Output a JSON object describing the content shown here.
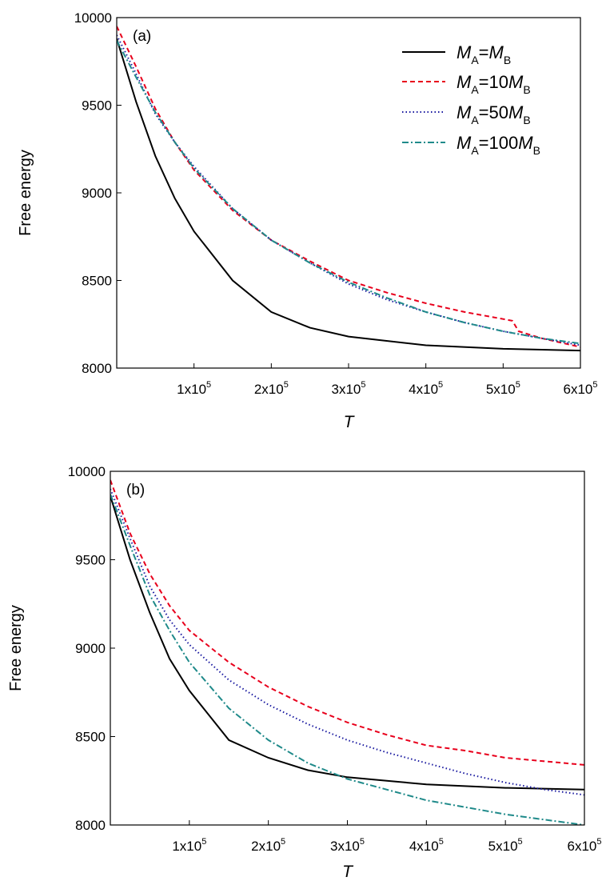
{
  "chart_data": [
    {
      "type": "line",
      "panel_label": "(a)",
      "xlabel": "T",
      "ylabel": "Free energy",
      "xlim": [
        0,
        600000
      ],
      "ylim": [
        8000,
        10000
      ],
      "xticks": [
        {
          "value": 100000,
          "mantissa": "1x10",
          "exp": "5"
        },
        {
          "value": 200000,
          "mantissa": "2x10",
          "exp": "5"
        },
        {
          "value": 300000,
          "mantissa": "3x10",
          "exp": "5"
        },
        {
          "value": 400000,
          "mantissa": "4x10",
          "exp": "5"
        },
        {
          "value": 500000,
          "mantissa": "5x10",
          "exp": "5"
        },
        {
          "value": 600000,
          "mantissa": "6x10",
          "exp": "5"
        }
      ],
      "yticks": [
        "8000",
        "8500",
        "9000",
        "9500",
        "10000"
      ],
      "legend_position": "top-right",
      "series": [
        {
          "name": "M_A=M_B",
          "legend": [
            [
              "M",
              "i"
            ],
            [
              "A",
              "sub"
            ],
            [
              "=",
              ""
            ],
            [
              "M",
              "i"
            ],
            [
              "B",
              "sub"
            ]
          ],
          "color": "#000000",
          "dash": "none",
          "x": [
            0,
            25000,
            50000,
            75000,
            100000,
            150000,
            200000,
            250000,
            300000,
            400000,
            500000,
            600000
          ],
          "y": [
            9880,
            9520,
            9210,
            8970,
            8780,
            8500,
            8320,
            8230,
            8180,
            8130,
            8110,
            8100
          ]
        },
        {
          "name": "M_A=10M_B",
          "legend": [
            [
              "M",
              "i"
            ],
            [
              "A",
              "sub"
            ],
            [
              "=10",
              ""
            ],
            [
              "M",
              "i"
            ],
            [
              "B",
              "sub"
            ]
          ],
          "color": "#e8001c",
          "dash": "6,4",
          "x": [
            0,
            25000,
            50000,
            75000,
            100000,
            150000,
            200000,
            250000,
            300000,
            350000,
            400000,
            450000,
            500000,
            512000,
            520000,
            550000,
            600000
          ],
          "y": [
            9950,
            9720,
            9480,
            9290,
            9130,
            8900,
            8730,
            8610,
            8500,
            8430,
            8370,
            8320,
            8280,
            8270,
            8210,
            8170,
            8120
          ]
        },
        {
          "name": "M_A=50M_B",
          "legend": [
            [
              "M",
              "i"
            ],
            [
              "A",
              "sub"
            ],
            [
              "=50",
              ""
            ],
            [
              "M",
              "i"
            ],
            [
              "B",
              "sub"
            ]
          ],
          "color": "#1a1aa0",
          "dash": "1.5,3",
          "x": [
            0,
            25000,
            50000,
            75000,
            100000,
            150000,
            200000,
            250000,
            300000,
            350000,
            400000,
            450000,
            500000,
            550000,
            600000
          ],
          "y": [
            9900,
            9680,
            9450,
            9290,
            9150,
            8910,
            8730,
            8600,
            8480,
            8390,
            8320,
            8260,
            8210,
            8170,
            8130
          ]
        },
        {
          "name": "M_A=100M_B",
          "legend": [
            [
              "M",
              "i"
            ],
            [
              "A",
              "sub"
            ],
            [
              "=100",
              ""
            ],
            [
              "M",
              "i"
            ],
            [
              "B",
              "sub"
            ]
          ],
          "color": "#1f8a8a",
          "dash": "8,3,2,3",
          "x": [
            0,
            25000,
            50000,
            75000,
            100000,
            150000,
            200000,
            250000,
            300000,
            350000,
            400000,
            450000,
            500000,
            550000,
            600000
          ],
          "y": [
            9870,
            9660,
            9460,
            9290,
            9140,
            8910,
            8730,
            8600,
            8490,
            8400,
            8320,
            8260,
            8210,
            8170,
            8140
          ]
        }
      ]
    },
    {
      "type": "line",
      "panel_label": "(b)",
      "xlabel": "T",
      "ylabel": "Free energy",
      "xlim": [
        0,
        600000
      ],
      "ylim": [
        8000,
        10000
      ],
      "xticks": [
        {
          "value": 100000,
          "mantissa": "1x10",
          "exp": "5"
        },
        {
          "value": 200000,
          "mantissa": "2x10",
          "exp": "5"
        },
        {
          "value": 300000,
          "mantissa": "3x10",
          "exp": "5"
        },
        {
          "value": 400000,
          "mantissa": "4x10",
          "exp": "5"
        },
        {
          "value": 500000,
          "mantissa": "5x10",
          "exp": "5"
        },
        {
          "value": 600000,
          "mantissa": "6x10",
          "exp": "5"
        }
      ],
      "yticks": [
        "8000",
        "8500",
        "9000",
        "9500",
        "10000"
      ],
      "series": [
        {
          "name": "M_A=M_B",
          "color": "#000000",
          "dash": "none",
          "x": [
            0,
            25000,
            50000,
            75000,
            100000,
            150000,
            200000,
            250000,
            300000,
            350000,
            400000,
            500000,
            600000
          ],
          "y": [
            9860,
            9500,
            9200,
            8940,
            8760,
            8480,
            8380,
            8310,
            8270,
            8250,
            8230,
            8210,
            8200
          ]
        },
        {
          "name": "M_A=10M_B",
          "color": "#e8001c",
          "dash": "6,4",
          "x": [
            0,
            25000,
            50000,
            75000,
            100000,
            150000,
            200000,
            250000,
            300000,
            350000,
            400000,
            450000,
            500000,
            550000,
            600000
          ],
          "y": [
            9950,
            9650,
            9420,
            9240,
            9100,
            8920,
            8780,
            8670,
            8580,
            8510,
            8450,
            8420,
            8380,
            8360,
            8340
          ]
        },
        {
          "name": "M_A=50M_B",
          "color": "#1a1aa0",
          "dash": "1.5,3",
          "x": [
            0,
            25000,
            50000,
            75000,
            100000,
            150000,
            200000,
            250000,
            300000,
            350000,
            400000,
            450000,
            500000,
            550000,
            600000
          ],
          "y": [
            9900,
            9620,
            9350,
            9160,
            9020,
            8820,
            8680,
            8570,
            8480,
            8410,
            8350,
            8290,
            8240,
            8200,
            8170
          ]
        },
        {
          "name": "M_A=100M_B",
          "color": "#1f8a8a",
          "dash": "8,3,2,3",
          "x": [
            0,
            25000,
            50000,
            75000,
            100000,
            150000,
            200000,
            250000,
            300000,
            350000,
            400000,
            450000,
            500000,
            550000,
            600000
          ],
          "y": [
            9870,
            9580,
            9300,
            9100,
            8920,
            8660,
            8480,
            8350,
            8260,
            8200,
            8140,
            8100,
            8060,
            8030,
            8000
          ]
        }
      ]
    }
  ]
}
